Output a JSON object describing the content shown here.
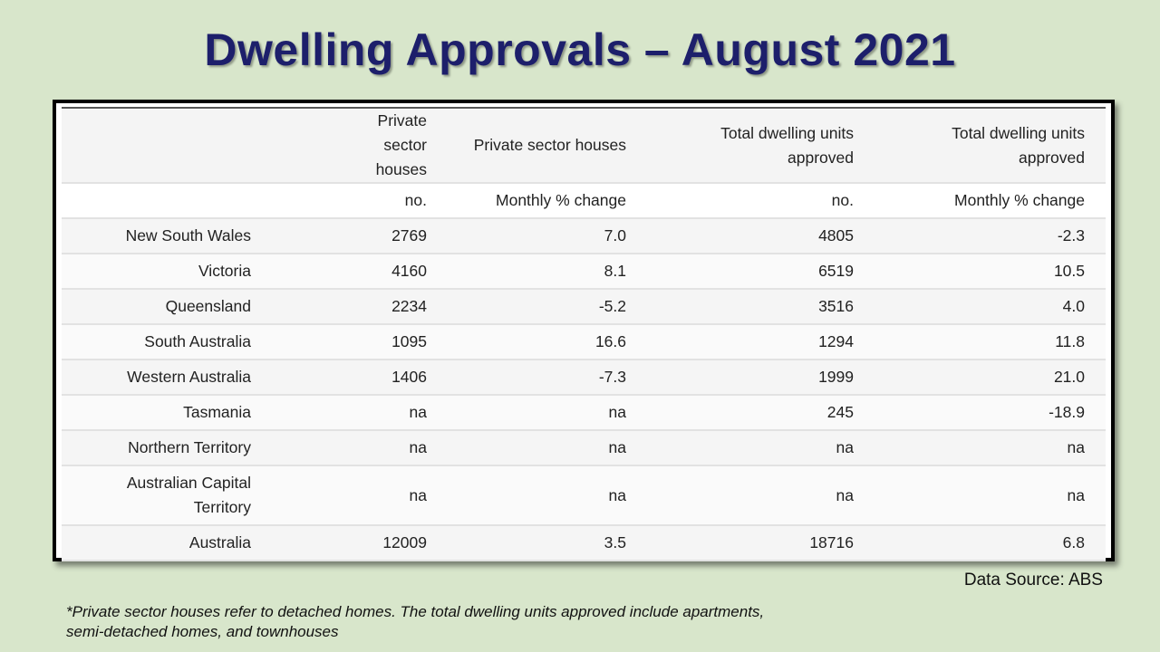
{
  "title": "Dwelling Approvals – August 2021",
  "table": {
    "headers": [
      "",
      "Private sector houses",
      "Private sector houses",
      "Total dwelling units approved",
      "Total dwelling units approved"
    ],
    "units": [
      "",
      "no.",
      "Monthly % change",
      "no.",
      "Monthly % change"
    ],
    "rows": [
      [
        "New South Wales",
        "2769",
        "7.0",
        "4805",
        "-2.3"
      ],
      [
        "Victoria",
        "4160",
        "8.1",
        "6519",
        "10.5"
      ],
      [
        "Queensland",
        "2234",
        "-5.2",
        "3516",
        "4.0"
      ],
      [
        "South Australia",
        "1095",
        "16.6",
        "1294",
        "11.8"
      ],
      [
        "Western Australia",
        "1406",
        "-7.3",
        "1999",
        "21.0"
      ],
      [
        "Tasmania",
        "na",
        "na",
        "245",
        "-18.9"
      ],
      [
        "Northern Territory",
        "na",
        "na",
        "na",
        "na"
      ],
      [
        "Australian Capital Territory",
        "na",
        "na",
        "na",
        "na"
      ],
      [
        "Australia",
        "12009",
        "3.5",
        "18716",
        "6.8"
      ]
    ]
  },
  "source": "Data Source: ABS",
  "footnote": "*Private sector houses refer to detached homes. The total dwelling units approved include apartments, semi-detached homes, and  townhouses"
}
